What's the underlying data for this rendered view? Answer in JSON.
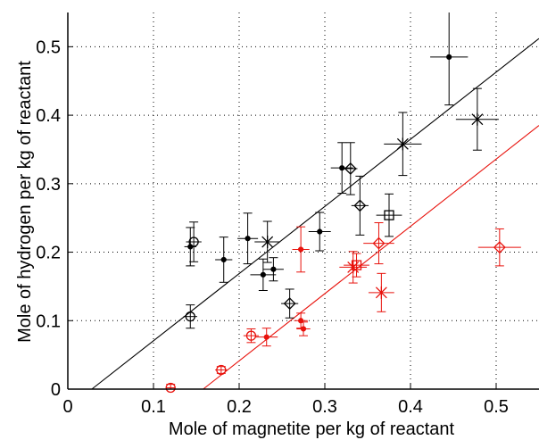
{
  "chart_data": {
    "type": "scatter",
    "xlabel": "Mole of magnetite per kg of reactant",
    "ylabel": "Mole of hydrogen per kg of reactant",
    "xlim": [
      0,
      0.55
    ],
    "ylim": [
      0,
      0.55
    ],
    "xticks": [
      0,
      0.1,
      0.2,
      0.3,
      0.4,
      0.5
    ],
    "yticks": [
      0,
      0.1,
      0.2,
      0.3,
      0.4,
      0.5
    ],
    "xtick_labels": [
      "0",
      "0.1",
      "0.2",
      "0.3",
      "0.4",
      "0.5"
    ],
    "ytick_labels": [
      "0",
      "0.1",
      "0.2",
      "0.3",
      "0.4",
      "0.5"
    ],
    "grid": true,
    "legend": "none",
    "colors": {
      "black": "#000000",
      "red": "#e8120c"
    },
    "fit_lines": [
      {
        "color": "black",
        "x": [
          0.028,
          0.55
        ],
        "y": [
          0,
          0.512
        ]
      },
      {
        "color": "red",
        "x": [
          0.158,
          0.55
        ],
        "y": [
          0,
          0.385
        ]
      }
    ],
    "series": [
      {
        "color": "black",
        "points": [
          {
            "x": 0.143,
            "y": 0.208,
            "marker": "dot",
            "xerr": 0.007,
            "yerr": 0.028
          },
          {
            "x": 0.182,
            "y": 0.189,
            "marker": "dot",
            "xerr": 0.01,
            "yerr": 0.033
          },
          {
            "x": 0.21,
            "y": 0.22,
            "marker": "dot",
            "xerr": 0.012,
            "yerr": 0.037
          },
          {
            "x": 0.228,
            "y": 0.167,
            "marker": "dot",
            "xerr": 0.015,
            "yerr": 0.023
          },
          {
            "x": 0.24,
            "y": 0.175,
            "marker": "dot",
            "xerr": 0.012,
            "yerr": 0.017
          },
          {
            "x": 0.294,
            "y": 0.23,
            "marker": "dot",
            "xerr": 0.013,
            "yerr": 0.028
          },
          {
            "x": 0.32,
            "y": 0.323,
            "marker": "dot",
            "xerr": 0.013,
            "yerr": 0.037
          },
          {
            "x": 0.445,
            "y": 0.485,
            "marker": "dot",
            "xerr": 0.022,
            "yerr": 0.07
          },
          {
            "x": 0.143,
            "y": 0.106,
            "marker": "circle",
            "xerr": 0.008,
            "yerr": 0.017
          },
          {
            "x": 0.147,
            "y": 0.215,
            "marker": "circle",
            "xerr": 0.009,
            "yerr": 0.029
          },
          {
            "x": 0.233,
            "y": 0.215,
            "marker": "star",
            "xerr": 0.015,
            "yerr": 0.03
          },
          {
            "x": 0.391,
            "y": 0.358,
            "marker": "star",
            "xerr": 0.022,
            "yerr": 0.046
          },
          {
            "x": 0.478,
            "y": 0.394,
            "marker": "star",
            "xerr": 0.025,
            "yerr": 0.045
          },
          {
            "x": 0.259,
            "y": 0.125,
            "marker": "diamond",
            "xerr": 0.01,
            "yerr": 0.021
          },
          {
            "x": 0.33,
            "y": 0.322,
            "marker": "diamond",
            "xerr": 0.008,
            "yerr": 0.038
          },
          {
            "x": 0.341,
            "y": 0.268,
            "marker": "diamond",
            "xerr": 0.01,
            "yerr": 0.043
          },
          {
            "x": 0.375,
            "y": 0.254,
            "marker": "square",
            "xerr": 0.015,
            "yerr": 0.031
          }
        ]
      },
      {
        "color": "red",
        "points": [
          {
            "x": 0.232,
            "y": 0.076,
            "marker": "dot",
            "xerr": 0.013,
            "yerr": 0.013
          },
          {
            "x": 0.272,
            "y": 0.1,
            "marker": "dot",
            "xerr": 0.008,
            "yerr": 0.011
          },
          {
            "x": 0.275,
            "y": 0.088,
            "marker": "dot",
            "xerr": 0.008,
            "yerr": 0.01
          },
          {
            "x": 0.272,
            "y": 0.204,
            "marker": "dot",
            "xerr": 0.01,
            "yerr": 0.033
          },
          {
            "x": 0.12,
            "y": 0.002,
            "marker": "circle",
            "xerr": 0.005,
            "yerr": 0.005
          },
          {
            "x": 0.179,
            "y": 0.028,
            "marker": "circle",
            "xerr": 0.007,
            "yerr": 0.005
          },
          {
            "x": 0.214,
            "y": 0.078,
            "marker": "circle",
            "xerr": 0.009,
            "yerr": 0.01
          },
          {
            "x": 0.333,
            "y": 0.178,
            "marker": "star",
            "xerr": 0.016,
            "yerr": 0.023
          },
          {
            "x": 0.366,
            "y": 0.141,
            "marker": "star",
            "xerr": 0.015,
            "yerr": 0.028
          },
          {
            "x": 0.337,
            "y": 0.181,
            "marker": "square",
            "xerr": 0.015,
            "yerr": 0.017
          },
          {
            "x": 0.363,
            "y": 0.213,
            "marker": "diamond",
            "xerr": 0.018,
            "yerr": 0.03
          },
          {
            "x": 0.504,
            "y": 0.207,
            "marker": "diamond",
            "xerr": 0.025,
            "yerr": 0.027
          }
        ]
      }
    ]
  }
}
